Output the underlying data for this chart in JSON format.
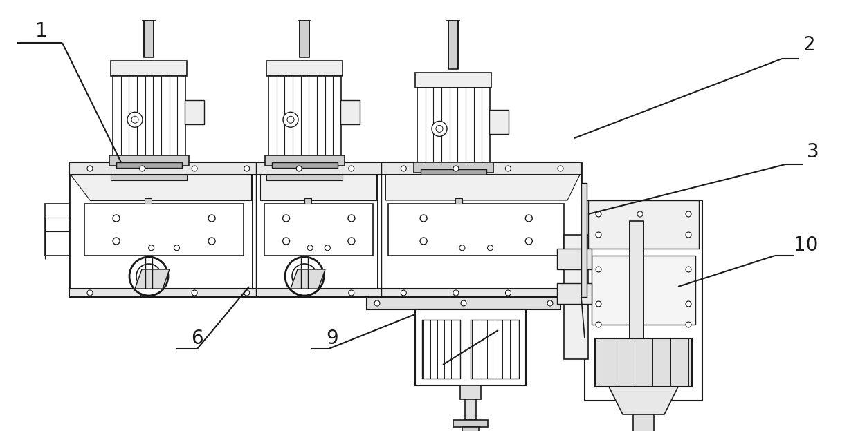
{
  "bg_color": "#ffffff",
  "line_color": "#1a1a1a",
  "fig_width": 12.4,
  "fig_height": 6.24,
  "label_fontsize": 20
}
